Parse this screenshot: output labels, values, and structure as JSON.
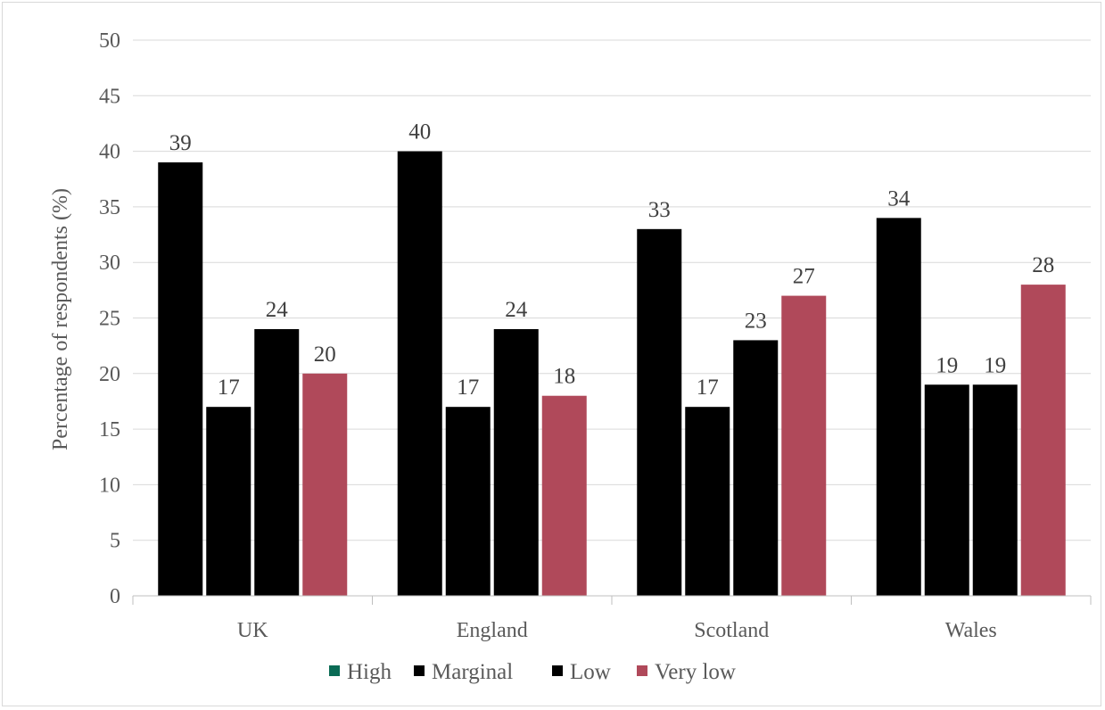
{
  "chart_data": {
    "type": "bar",
    "categories": [
      "UK",
      "England",
      "Scotland",
      "Wales"
    ],
    "series": [
      {
        "name": "High",
        "color": "#0a6b55",
        "values": [
          39,
          40,
          33,
          34
        ]
      },
      {
        "name": "Marginal",
        "color": "#000000",
        "values": [
          17,
          17,
          17,
          19
        ]
      },
      {
        "name": "Low",
        "color": "#000000",
        "values": [
          24,
          24,
          23,
          19
        ]
      },
      {
        "name": "Very low",
        "color": "#b0495a",
        "values": [
          20,
          18,
          27,
          28
        ]
      }
    ],
    "bar_colors_rendered": [
      "#000000",
      "#000000",
      "#000000",
      "#b0495a"
    ],
    "title": "",
    "xlabel": "",
    "ylabel": "Percentage of respondents (%)",
    "ylim": [
      0,
      50
    ],
    "yticks": [
      0,
      5,
      10,
      15,
      20,
      25,
      30,
      35,
      40,
      45,
      50
    ],
    "grid": true,
    "legend_position": "bottom"
  }
}
